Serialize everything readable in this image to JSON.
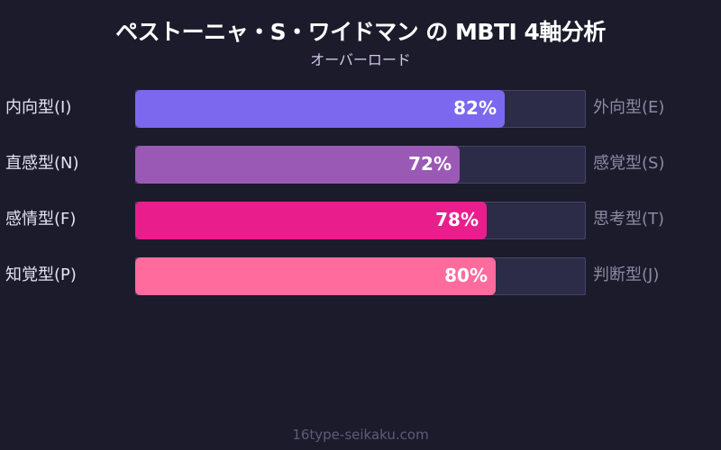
{
  "title": "ペストーニャ・S・ワイドマン の MBTI 4軸分析",
  "subtitle": "オーバーロード",
  "footer": "16type-seikaku.com",
  "chart_data": {
    "type": "bar",
    "orientation": "horizontal",
    "title": "ペストーニャ・S・ワイドマン の MBTI 4軸分析",
    "subtitle": "オーバーロード",
    "xlim": [
      0,
      100
    ],
    "grid": false,
    "legend": "none",
    "categories": [
      "内向型(I) / 外向型(E)",
      "直感型(N) / 感覚型(S)",
      "感情型(F) / 思考型(T)",
      "知覚型(P) / 判断型(J)"
    ],
    "values": [
      82,
      72,
      78,
      80
    ],
    "axes": [
      {
        "left": "内向型(I)",
        "right": "外向型(E)",
        "value": 82,
        "label": "82%",
        "color": "#7b68ee"
      },
      {
        "left": "直感型(N)",
        "right": "感覚型(S)",
        "value": 72,
        "label": "72%",
        "color": "#9b59b6"
      },
      {
        "left": "感情型(F)",
        "right": "思考型(T)",
        "value": 78,
        "label": "78%",
        "color": "#e91e8c"
      },
      {
        "left": "知覚型(P)",
        "right": "判断型(J)",
        "value": 80,
        "label": "80%",
        "color": "#ff6b9d"
      }
    ]
  }
}
